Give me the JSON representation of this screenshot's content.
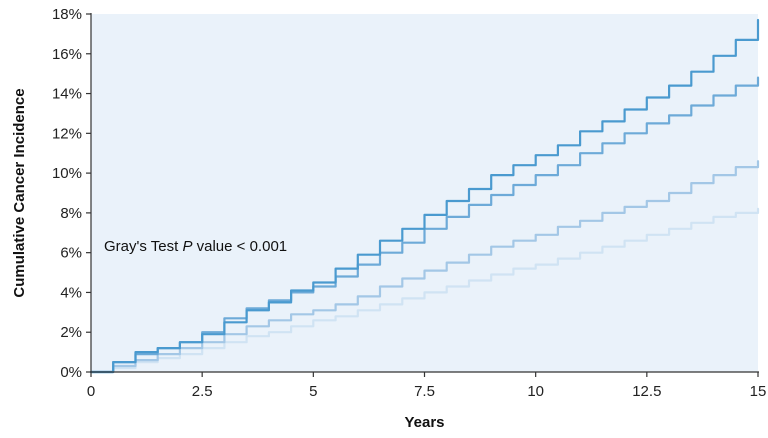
{
  "chart_data": {
    "type": "line",
    "title": "",
    "xlabel": "Years",
    "ylabel": "Cumulative Cancer Incidence",
    "xlim": [
      0,
      15
    ],
    "ylim": [
      0,
      18
    ],
    "x_ticks": [
      0,
      2.5,
      5,
      7.5,
      10,
      12.5,
      15
    ],
    "x_tick_labels": [
      "0",
      "2.5",
      "5",
      "7.5",
      "10",
      "12.5",
      "15"
    ],
    "y_ticks": [
      0,
      2,
      4,
      6,
      8,
      10,
      12,
      14,
      16,
      18
    ],
    "y_tick_labels": [
      "0%",
      "2%",
      "4%",
      "6%",
      "8%",
      "10%",
      "12%",
      "14%",
      "16%",
      "18%"
    ],
    "grid": false,
    "legend": "none",
    "annotation": {
      "prefix": "Gray's Test ",
      "italic": "P",
      "suffix": " value < 0.001"
    },
    "background_color": "#eaf2fa",
    "series": [
      {
        "color": "#4a9acf",
        "x": [
          0,
          0.5,
          1,
          1.5,
          2,
          2.5,
          3,
          3.5,
          4,
          4.5,
          5,
          5.5,
          6,
          6.5,
          7,
          7.5,
          8,
          8.5,
          9,
          9.5,
          10,
          10.5,
          11,
          11.5,
          12,
          12.5,
          13,
          13.5,
          14,
          14.5,
          15
        ],
        "y": [
          0,
          0.5,
          1.0,
          1.2,
          1.5,
          1.9,
          2.5,
          3.1,
          3.5,
          4.1,
          4.5,
          5.2,
          5.9,
          6.6,
          7.2,
          7.9,
          8.6,
          9.2,
          9.9,
          10.4,
          10.9,
          11.4,
          12.1,
          12.6,
          13.2,
          13.8,
          14.4,
          15.1,
          15.9,
          16.7,
          17.7
        ]
      },
      {
        "color": "#6daad8",
        "x": [
          0,
          0.5,
          1,
          1.5,
          2,
          2.5,
          3,
          3.5,
          4,
          4.5,
          5,
          5.5,
          6,
          6.5,
          7,
          7.5,
          8,
          8.5,
          9,
          9.5,
          10,
          10.5,
          11,
          11.5,
          12,
          12.5,
          13,
          13.5,
          14,
          14.5,
          15
        ],
        "y": [
          0,
          0.5,
          0.9,
          1.2,
          1.5,
          2.0,
          2.7,
          3.2,
          3.6,
          4.0,
          4.3,
          4.8,
          5.4,
          6.0,
          6.5,
          7.2,
          7.8,
          8.4,
          8.9,
          9.4,
          9.9,
          10.4,
          11.0,
          11.5,
          12.0,
          12.5,
          12.9,
          13.4,
          13.9,
          14.4,
          14.8
        ]
      },
      {
        "color": "#a3c7e6",
        "x": [
          0,
          0.5,
          1,
          1.5,
          2,
          2.5,
          3,
          3.5,
          4,
          4.5,
          5,
          5.5,
          6,
          6.5,
          7,
          7.5,
          8,
          8.5,
          9,
          9.5,
          10,
          10.5,
          11,
          11.5,
          12,
          12.5,
          13,
          13.5,
          14,
          14.5,
          15
        ],
        "y": [
          0,
          0.3,
          0.6,
          0.9,
          1.2,
          1.5,
          1.9,
          2.3,
          2.6,
          2.9,
          3.1,
          3.4,
          3.8,
          4.3,
          4.7,
          5.1,
          5.5,
          5.9,
          6.3,
          6.6,
          6.9,
          7.3,
          7.6,
          8.0,
          8.3,
          8.6,
          9.0,
          9.5,
          9.9,
          10.3,
          10.6
        ]
      },
      {
        "color": "#d0e3f3",
        "x": [
          0,
          0.5,
          1,
          1.5,
          2,
          2.5,
          3,
          3.5,
          4,
          4.5,
          5,
          5.5,
          6,
          6.5,
          7,
          7.5,
          8,
          8.5,
          9,
          9.5,
          10,
          10.5,
          11,
          11.5,
          12,
          12.5,
          13,
          13.5,
          14,
          14.5,
          15
        ],
        "y": [
          0,
          0.2,
          0.5,
          0.7,
          0.9,
          1.2,
          1.5,
          1.8,
          2.0,
          2.3,
          2.6,
          2.8,
          3.1,
          3.4,
          3.7,
          4.0,
          4.3,
          4.6,
          4.9,
          5.2,
          5.4,
          5.7,
          6.0,
          6.3,
          6.6,
          6.9,
          7.2,
          7.5,
          7.8,
          8.0,
          8.2
        ]
      }
    ]
  }
}
